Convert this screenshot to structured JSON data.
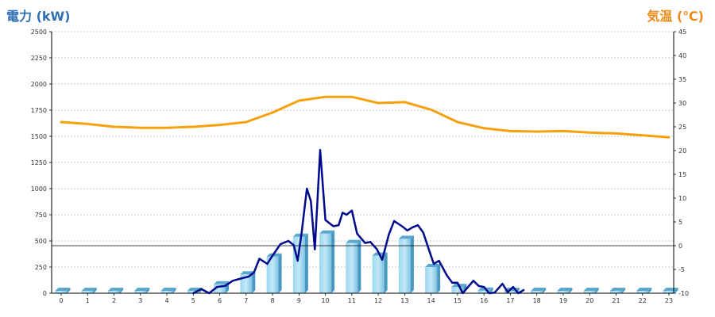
{
  "chart_data": {
    "type": "bar",
    "y_axis_left_label": "電力 (kW)",
    "y_axis_right_label": "気温 (℃)",
    "x_ticks": [
      "0",
      "1",
      "2",
      "3",
      "4",
      "5",
      "6",
      "7",
      "8",
      "9",
      "10",
      "11",
      "12",
      "13",
      "14",
      "15",
      "16",
      "17",
      "18",
      "19",
      "20",
      "21",
      "22",
      "23"
    ],
    "y_left_ticks": [
      "0",
      "250",
      "500",
      "750",
      "1000",
      "1250",
      "1500",
      "1750",
      "2000",
      "2250",
      "2500"
    ],
    "y_left_range": [
      0,
      2500
    ],
    "y_right_ticks": [
      "-10",
      "-5",
      "0",
      "5",
      "10",
      "15",
      "20",
      "25",
      "30",
      "35",
      "40",
      "45"
    ],
    "y_right_range": [
      -10,
      45
    ],
    "grid": true,
    "reference_line": {
      "axis": "right",
      "value": 0
    },
    "series": [
      {
        "kind": "bar",
        "axis": "left",
        "color": "#87ceea",
        "x": [
          0,
          1,
          2,
          3,
          4,
          5,
          6,
          7,
          8,
          9,
          10,
          11,
          12,
          13,
          14,
          15,
          16,
          17,
          18,
          19,
          20,
          21,
          22,
          23
        ],
        "values": [
          0,
          0,
          0,
          0,
          0,
          20,
          85,
          180,
          350,
          540,
          570,
          480,
          360,
          520,
          250,
          60,
          25,
          5,
          0,
          0,
          0,
          0,
          0,
          0
        ]
      },
      {
        "kind": "line",
        "axis": "left",
        "color": "#000a8c",
        "x": [
          5.0,
          5.3,
          5.6,
          5.9,
          6.2,
          6.5,
          6.8,
          7.1,
          7.3,
          7.5,
          7.8,
          8.0,
          8.3,
          8.6,
          8.8,
          8.95,
          9.1,
          9.3,
          9.45,
          9.6,
          9.8,
          10.0,
          10.3,
          10.5,
          10.65,
          10.8,
          11.0,
          11.2,
          11.5,
          11.7,
          11.95,
          12.15,
          12.4,
          12.6,
          12.9,
          13.1,
          13.3,
          13.5,
          13.7,
          13.9,
          14.1,
          14.3,
          14.6,
          14.8,
          15.0,
          15.2,
          15.4,
          15.6,
          15.8,
          16.0,
          16.2,
          16.4,
          16.7,
          16.9,
          17.1,
          17.3,
          17.5
        ],
        "values": [
          0,
          40,
          0,
          60,
          70,
          120,
          140,
          160,
          200,
          330,
          280,
          360,
          470,
          500,
          460,
          310,
          580,
          1000,
          880,
          420,
          1370,
          700,
          640,
          650,
          770,
          750,
          790,
          570,
          480,
          490,
          420,
          320,
          560,
          690,
          640,
          600,
          630,
          650,
          580,
          430,
          280,
          310,
          170,
          100,
          100,
          0,
          60,
          120,
          70,
          60,
          0,
          5,
          90,
          10,
          60,
          0,
          30
        ]
      },
      {
        "kind": "line",
        "axis": "right",
        "color": "#f5a10c",
        "x": [
          0,
          1,
          2,
          3,
          4,
          5,
          6,
          7,
          8,
          9,
          10,
          11,
          12,
          13,
          14,
          15,
          16,
          17,
          18,
          19,
          20,
          21,
          22,
          23
        ],
        "values": [
          26,
          25.6,
          25,
          24.8,
          24.8,
          25,
          25.4,
          26,
          28,
          30.5,
          31.3,
          31.3,
          30,
          30.2,
          28.6,
          26,
          24.7,
          24.1,
          24,
          24.1,
          23.8,
          23.6,
          23.2,
          22.8
        ]
      }
    ]
  }
}
